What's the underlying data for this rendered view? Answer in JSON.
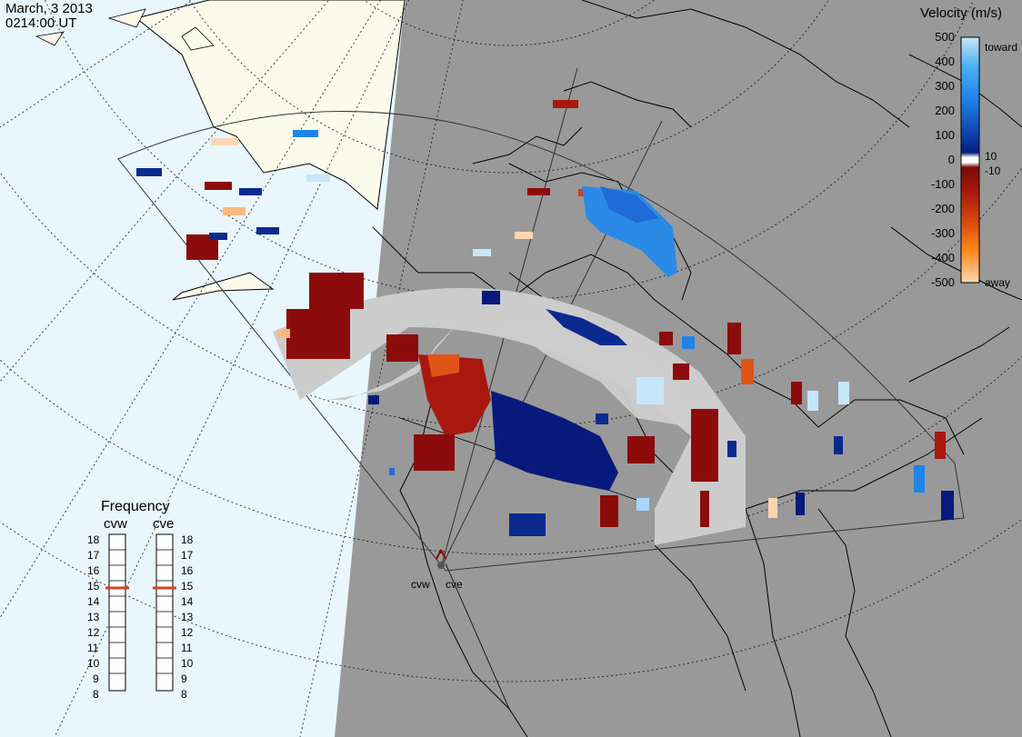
{
  "header": {
    "date": "March, 3 2013",
    "time": "0214:00 UT"
  },
  "colorbar": {
    "title": "Velocity (m/s)",
    "ticks": [
      "500",
      "400",
      "300",
      "200",
      "100",
      "0",
      "-100",
      "-200",
      "-300",
      "-400",
      "-500"
    ],
    "near_zero_positive": "10",
    "near_zero_negative": "-10",
    "toward_label": "toward",
    "away_label": "away"
  },
  "frequency": {
    "title": "Frequency",
    "left_radar": "cvw",
    "right_radar": "cve",
    "scale": [
      "18",
      "17",
      "16",
      "15",
      "14",
      "13",
      "12",
      "11",
      "10",
      "9",
      "8"
    ],
    "left_value": 15,
    "right_value": 15,
    "marker_color": "#d4441c"
  },
  "radars": {
    "west": "cvw",
    "east": "cve"
  },
  "colors": {
    "land_day": "#fbfbeb",
    "ocean_day": "#e9f6fd",
    "night_shade": "#999999",
    "ground_scatter": "#cccccc"
  }
}
